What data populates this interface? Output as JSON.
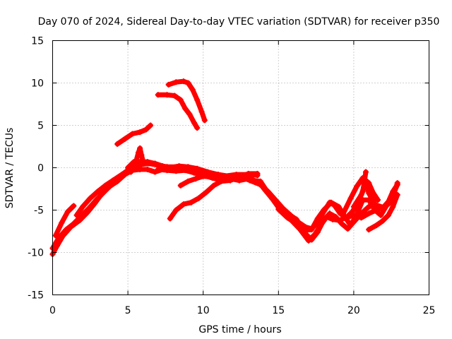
{
  "chart_data": {
    "type": "scatter",
    "title": "Day 070 of 2024, Sidereal Day-to-day VTEC variation (SDTVAR) for receiver p350",
    "xlabel": "GPS time / hours",
    "ylabel": "SDTVAR / TECUs",
    "xlim": [
      0,
      25
    ],
    "ylim": [
      -15,
      15
    ],
    "xticks": [
      0,
      5,
      10,
      15,
      20,
      25
    ],
    "yticks": [
      -15,
      -10,
      -5,
      0,
      5,
      10,
      15
    ],
    "grid": true,
    "marker": "+",
    "color": "#ff0000",
    "series": [
      {
        "name": "trace-1",
        "points": [
          [
            0.0,
            -10.2
          ],
          [
            0.3,
            -9.2
          ],
          [
            0.7,
            -8.0
          ],
          [
            1.2,
            -7.0
          ],
          [
            1.8,
            -6.2
          ],
          [
            2.3,
            -5.3
          ],
          [
            2.8,
            -4.2
          ],
          [
            3.3,
            -3.0
          ],
          [
            3.8,
            -2.2
          ],
          [
            4.3,
            -1.6
          ],
          [
            4.8,
            -0.8
          ],
          [
            5.3,
            -0.3
          ],
          [
            5.8,
            -0.2
          ],
          [
            6.3,
            -0.2
          ],
          [
            6.8,
            -0.5
          ],
          [
            7.3,
            -0.2
          ],
          [
            7.8,
            0.0
          ]
        ]
      },
      {
        "name": "trace-2",
        "points": [
          [
            0.0,
            -9.5
          ],
          [
            0.4,
            -8.3
          ],
          [
            0.9,
            -7.3
          ],
          [
            1.4,
            -6.6
          ],
          [
            1.9,
            -5.7
          ],
          [
            2.4,
            -4.8
          ],
          [
            2.9,
            -3.8
          ],
          [
            3.4,
            -2.9
          ],
          [
            3.9,
            -2.0
          ],
          [
            4.4,
            -1.4
          ],
          [
            4.9,
            -0.6
          ],
          [
            5.4,
            0.2
          ],
          [
            5.9,
            0.4
          ],
          [
            6.4,
            0.5
          ],
          [
            7.0,
            0.3
          ],
          [
            7.6,
            0.1
          ],
          [
            8.3,
            0.1
          ],
          [
            9.0,
            0.0
          ],
          [
            9.8,
            -0.4
          ],
          [
            10.6,
            -0.8
          ],
          [
            11.4,
            -1.0
          ],
          [
            12.2,
            -0.8
          ],
          [
            13.0,
            -0.8
          ],
          [
            13.6,
            -0.9
          ]
        ]
      },
      {
        "name": "trace-3",
        "points": [
          [
            0.2,
            -8.0
          ],
          [
            0.6,
            -6.5
          ],
          [
            1.0,
            -5.2
          ],
          [
            1.4,
            -4.5
          ]
        ]
      },
      {
        "name": "trace-4",
        "points": [
          [
            1.6,
            -5.6
          ],
          [
            2.0,
            -4.6
          ],
          [
            2.5,
            -3.6
          ],
          [
            3.0,
            -2.8
          ],
          [
            3.5,
            -2.1
          ],
          [
            4.0,
            -1.5
          ],
          [
            4.6,
            -0.8
          ],
          [
            5.0,
            -0.3
          ]
        ]
      },
      {
        "name": "trace-5",
        "points": [
          [
            5.0,
            0.0
          ],
          [
            5.4,
            0.7
          ],
          [
            5.8,
            0.7
          ],
          [
            6.3,
            0.7
          ],
          [
            6.8,
            0.5
          ],
          [
            7.3,
            0.2
          ],
          [
            7.8,
            0.0
          ],
          [
            8.4,
            0.2
          ],
          [
            9.0,
            0.1
          ],
          [
            9.6,
            -0.1
          ],
          [
            10.3,
            -0.5
          ],
          [
            11.0,
            -0.8
          ],
          [
            11.7,
            -1.0
          ],
          [
            12.4,
            -1.0
          ],
          [
            13.1,
            -1.5
          ],
          [
            13.8,
            -2.0
          ],
          [
            14.3,
            -2.8
          ],
          [
            14.8,
            -3.8
          ],
          [
            15.3,
            -4.8
          ],
          [
            15.8,
            -5.6
          ],
          [
            16.3,
            -6.4
          ],
          [
            16.8,
            -7.0
          ],
          [
            17.2,
            -7.2
          ],
          [
            17.6,
            -6.5
          ],
          [
            18.0,
            -5.2
          ],
          [
            18.4,
            -4.1
          ],
          [
            18.7,
            -4.4
          ],
          [
            19.1,
            -5.4
          ],
          [
            19.5,
            -5.9
          ],
          [
            19.9,
            -5.2
          ],
          [
            20.3,
            -4.0
          ],
          [
            20.6,
            -2.8
          ],
          [
            20.8,
            -0.5
          ]
        ]
      },
      {
        "name": "trace-6",
        "points": [
          [
            13.2,
            -1.5
          ],
          [
            13.8,
            -1.6
          ],
          [
            14.4,
            -3.2
          ],
          [
            15.0,
            -4.6
          ],
          [
            15.6,
            -5.4
          ],
          [
            16.2,
            -6.1
          ],
          [
            16.8,
            -7.8
          ],
          [
            17.2,
            -8.5
          ],
          [
            17.6,
            -7.6
          ],
          [
            18.0,
            -6.2
          ],
          [
            18.4,
            -5.4
          ],
          [
            18.8,
            -5.8
          ],
          [
            19.2,
            -6.6
          ],
          [
            19.6,
            -7.2
          ],
          [
            20.0,
            -6.4
          ],
          [
            20.5,
            -5.4
          ],
          [
            21.0,
            -4.6
          ],
          [
            21.5,
            -4.4
          ],
          [
            22.0,
            -4.7
          ],
          [
            22.5,
            -4.0
          ],
          [
            22.9,
            -1.8
          ]
        ]
      },
      {
        "name": "trace-7",
        "points": [
          [
            14.0,
            -2.4
          ],
          [
            14.6,
            -3.7
          ],
          [
            15.2,
            -5.2
          ],
          [
            15.8,
            -6.1
          ],
          [
            16.4,
            -7.2
          ],
          [
            17.0,
            -8.6
          ],
          [
            17.4,
            -7.9
          ],
          [
            17.8,
            -6.8
          ],
          [
            18.2,
            -5.8
          ],
          [
            18.6,
            -6.1
          ],
          [
            19.0,
            -6.2
          ],
          [
            19.5,
            -5.9
          ],
          [
            20.0,
            -5.6
          ],
          [
            20.5,
            -5.9
          ],
          [
            21.0,
            -5.4
          ],
          [
            21.5,
            -5.0
          ],
          [
            22.0,
            -4.6
          ],
          [
            22.5,
            -3.6
          ],
          [
            22.9,
            -2.0
          ]
        ]
      },
      {
        "name": "trace-8",
        "points": [
          [
            15.0,
            -4.9
          ],
          [
            15.6,
            -5.9
          ],
          [
            16.2,
            -6.6
          ],
          [
            16.7,
            -7.4
          ],
          [
            17.2,
            -7.3
          ],
          [
            17.6,
            -6.0
          ],
          [
            18.0,
            -5.0
          ],
          [
            18.5,
            -4.1
          ],
          [
            19.0,
            -4.6
          ],
          [
            19.4,
            -5.8
          ],
          [
            19.8,
            -6.8
          ],
          [
            20.2,
            -5.5
          ],
          [
            20.6,
            -3.8
          ],
          [
            21.0,
            -3.8
          ],
          [
            21.4,
            -5.0
          ],
          [
            21.8,
            -5.6
          ],
          [
            22.2,
            -4.4
          ],
          [
            22.6,
            -2.8
          ],
          [
            22.9,
            -2.0
          ]
        ]
      },
      {
        "name": "trace-9",
        "points": [
          [
            19.3,
            -5.4
          ],
          [
            19.8,
            -3.6
          ],
          [
            20.2,
            -2.2
          ],
          [
            20.6,
            -1.2
          ],
          [
            21.0,
            -1.8
          ],
          [
            21.3,
            -3.0
          ],
          [
            21.6,
            -3.8
          ]
        ]
      },
      {
        "name": "trace-10",
        "points": [
          [
            20.0,
            -4.6
          ],
          [
            20.5,
            -3.2
          ],
          [
            20.8,
            -1.6
          ],
          [
            21.0,
            -3.0
          ],
          [
            21.4,
            -4.3
          ]
        ]
      },
      {
        "name": "trace-11",
        "points": [
          [
            21.0,
            -7.3
          ],
          [
            21.5,
            -6.8
          ],
          [
            21.9,
            -6.3
          ],
          [
            22.3,
            -5.6
          ],
          [
            22.6,
            -4.6
          ],
          [
            22.9,
            -3.2
          ]
        ]
      },
      {
        "name": "trace-12",
        "points": [
          [
            7.8,
            -6.0
          ],
          [
            8.2,
            -5.0
          ],
          [
            8.7,
            -4.3
          ],
          [
            9.2,
            -4.1
          ],
          [
            9.7,
            -3.6
          ],
          [
            10.2,
            -2.9
          ],
          [
            10.7,
            -2.1
          ],
          [
            11.2,
            -1.6
          ],
          [
            11.8,
            -1.5
          ],
          [
            12.4,
            -1.1
          ],
          [
            13.0,
            -0.7
          ],
          [
            13.6,
            -0.7
          ]
        ]
      },
      {
        "name": "trace-13",
        "points": [
          [
            8.5,
            -2.1
          ],
          [
            9.0,
            -1.6
          ],
          [
            9.5,
            -1.3
          ],
          [
            10.0,
            -1.0
          ],
          [
            10.5,
            -1.1
          ],
          [
            11.0,
            -1.3
          ],
          [
            11.5,
            -1.2
          ],
          [
            12.0,
            -1.0
          ],
          [
            12.6,
            -1.0
          ],
          [
            13.2,
            -1.1
          ]
        ]
      },
      {
        "name": "trace-14",
        "points": [
          [
            7.0,
            -0.2
          ],
          [
            7.6,
            -0.3
          ],
          [
            8.2,
            -0.4
          ],
          [
            8.8,
            -0.3
          ],
          [
            9.4,
            -0.6
          ],
          [
            10.0,
            -0.9
          ],
          [
            10.6,
            -1.2
          ],
          [
            11.2,
            -1.5
          ],
          [
            11.8,
            -1.3
          ],
          [
            12.4,
            -1.5
          ],
          [
            13.0,
            -1.3
          ],
          [
            13.6,
            -1.6
          ]
        ]
      },
      {
        "name": "trace-15",
        "points": [
          [
            5.2,
            -0.5
          ],
          [
            5.5,
            0.5
          ],
          [
            5.7,
            1.8
          ],
          [
            5.8,
            2.3
          ],
          [
            5.9,
            1.5
          ],
          [
            6.0,
            0.8
          ]
        ]
      },
      {
        "name": "trace-16",
        "points": [
          [
            4.3,
            2.8
          ],
          [
            4.8,
            3.4
          ],
          [
            5.3,
            4.0
          ],
          [
            5.8,
            4.2
          ],
          [
            6.2,
            4.5
          ],
          [
            6.5,
            5.0
          ]
        ]
      },
      {
        "name": "trace-17",
        "points": [
          [
            7.0,
            8.6
          ],
          [
            7.6,
            8.6
          ],
          [
            8.1,
            8.5
          ],
          [
            8.5,
            8.0
          ],
          [
            8.8,
            7.0
          ],
          [
            9.1,
            6.3
          ],
          [
            9.4,
            5.3
          ],
          [
            9.6,
            4.7
          ]
        ]
      },
      {
        "name": "trace-18",
        "points": [
          [
            7.7,
            9.8
          ],
          [
            8.2,
            10.1
          ],
          [
            8.7,
            10.2
          ],
          [
            9.0,
            10.0
          ],
          [
            9.3,
            9.2
          ],
          [
            9.6,
            8.0
          ],
          [
            9.9,
            6.6
          ],
          [
            10.1,
            5.6
          ]
        ]
      }
    ]
  }
}
